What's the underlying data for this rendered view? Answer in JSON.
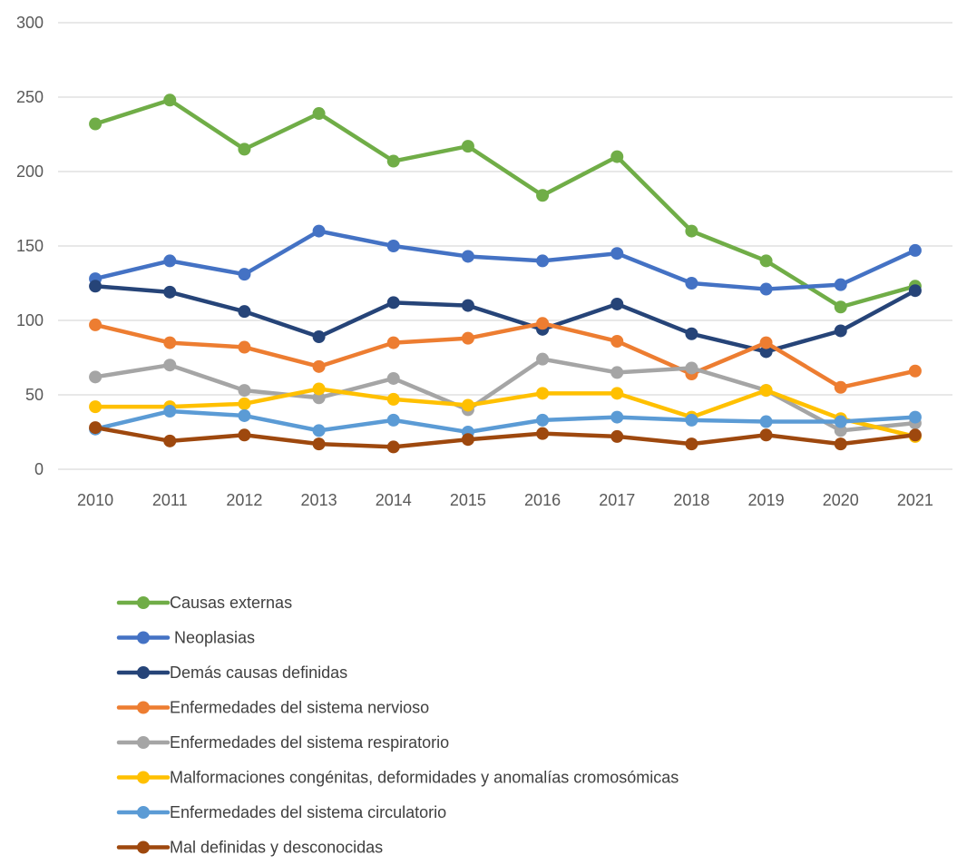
{
  "chart_data": {
    "type": "line",
    "title": "",
    "xlabel": "",
    "ylabel": "",
    "x": [
      "2010",
      "2011",
      "2012",
      "2013",
      "2014",
      "2015",
      "2016",
      "2017",
      "2018",
      "2019",
      "2020",
      "2021"
    ],
    "ylim": [
      0,
      300
    ],
    "yticks": [
      0,
      50,
      100,
      150,
      200,
      250,
      300
    ],
    "grid": true,
    "legend_position": "bottom",
    "series": [
      {
        "name": "Causas externas",
        "color": "#70AD47",
        "values": [
          232,
          248,
          215,
          239,
          207,
          217,
          184,
          210,
          160,
          140,
          109,
          123
        ]
      },
      {
        "name": " Neoplasias",
        "color": "#4472C4",
        "values": [
          128,
          140,
          131,
          160,
          150,
          143,
          140,
          145,
          125,
          121,
          124,
          147
        ]
      },
      {
        "name": "Demás causas definidas",
        "color": "#264478",
        "values": [
          123,
          119,
          106,
          89,
          112,
          110,
          94,
          111,
          91,
          79,
          93,
          120
        ]
      },
      {
        "name": "Enfermedades del sistema nervioso",
        "color": "#ED7D31",
        "values": [
          97,
          85,
          82,
          69,
          85,
          88,
          98,
          86,
          64,
          85,
          55,
          66
        ]
      },
      {
        "name": "Enfermedades del sistema respiratorio",
        "color": "#A5A5A5",
        "values": [
          62,
          70,
          53,
          48,
          61,
          40,
          74,
          65,
          68,
          53,
          26,
          31
        ]
      },
      {
        "name": "Malformaciones congénitas, deformidades y anomalías cromosómicas",
        "color": "#FFC000",
        "values": [
          42,
          42,
          44,
          54,
          47,
          43,
          51,
          51,
          35,
          53,
          34,
          22
        ]
      },
      {
        "name": "Enfermedades del sistema circulatorio",
        "color": "#5B9BD5",
        "values": [
          27,
          39,
          36,
          26,
          33,
          25,
          33,
          35,
          33,
          32,
          32,
          35
        ]
      },
      {
        "name": "Mal definidas y desconocidas",
        "color": "#9E480E",
        "values": [
          28,
          19,
          23,
          17,
          15,
          20,
          24,
          22,
          17,
          23,
          17,
          23
        ]
      }
    ]
  }
}
